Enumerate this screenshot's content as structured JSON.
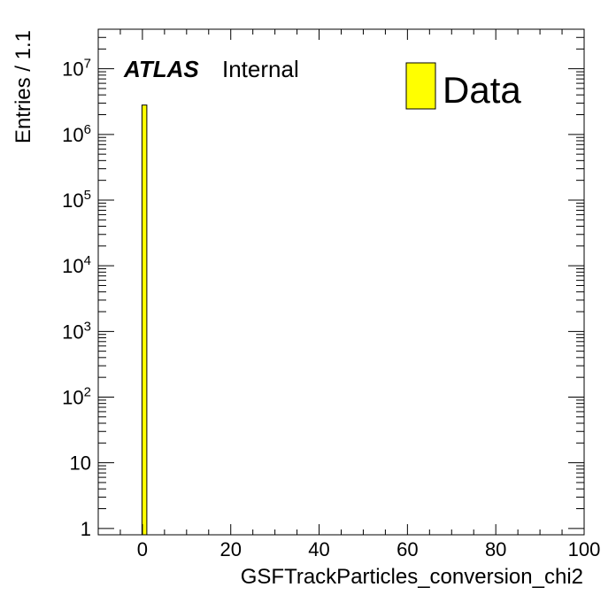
{
  "chart_data": {
    "type": "bar",
    "xlabel": "GSFTrackParticles_conversion_chi2",
    "ylabel": "Entries / 1.1",
    "xlim": [
      -10,
      100
    ],
    "ylim": [
      0.8,
      40000000
    ],
    "y_scale": "log",
    "x_ticks": [
      "0",
      "20",
      "40",
      "60",
      "80",
      "100"
    ],
    "y_ticks": [
      {
        "base": "1",
        "exp": ""
      },
      {
        "base": "10",
        "exp": ""
      },
      {
        "base": "10",
        "exp": "2"
      },
      {
        "base": "10",
        "exp": "3"
      },
      {
        "base": "10",
        "exp": "4"
      },
      {
        "base": "10",
        "exp": "5"
      },
      {
        "base": "10",
        "exp": "6"
      },
      {
        "base": "10",
        "exp": "7"
      }
    ],
    "series": [
      {
        "name": "Data",
        "color": "#ffff00",
        "bins": [
          {
            "x_low": -0.1,
            "x_high": 1.0,
            "value": 2800000
          }
        ]
      }
    ],
    "legend": {
      "placement": "top-right",
      "entries": [
        "Data"
      ]
    },
    "atlas_label": {
      "bold": "ATLAS",
      "text": "Internal"
    },
    "grid": false
  }
}
